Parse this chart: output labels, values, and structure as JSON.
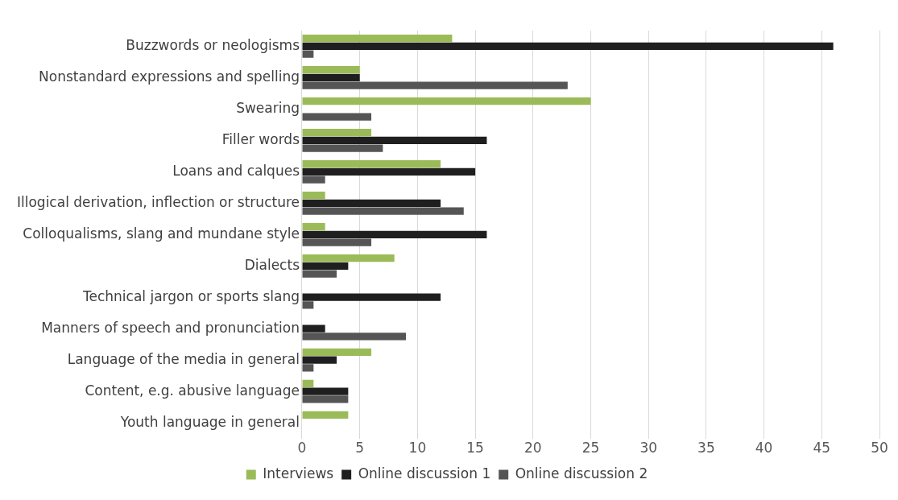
{
  "chart_data": {
    "type": "bar",
    "orientation": "horizontal",
    "categories": [
      "Buzzwords or neologisms",
      "Nonstandard expressions and spelling",
      "Swearing",
      "Filler words",
      "Loans and calques",
      "Illogical derivation, inflection or structure",
      "Colloqualisms, slang and mundane style",
      "Dialects",
      "Technical jargon or sports slang",
      "Manners of speech and pronunciation",
      "Language of the media in general",
      "Content, e.g. abusive language",
      "Youth language in general"
    ],
    "series": [
      {
        "name": "Interviews",
        "color": "#9bbb59",
        "values": [
          13,
          5,
          25,
          6,
          12,
          2,
          2,
          8,
          0,
          0,
          6,
          1,
          4
        ]
      },
      {
        "name": "Online discussion 1",
        "color": "#1f1f1f",
        "values": [
          46,
          5,
          0,
          16,
          15,
          12,
          16,
          4,
          12,
          2,
          3,
          4,
          0
        ]
      },
      {
        "name": "Online discussion 2",
        "color": "#555555",
        "values": [
          1,
          23,
          6,
          7,
          2,
          14,
          6,
          3,
          1,
          9,
          1,
          4,
          0
        ]
      }
    ],
    "xlim": [
      0,
      50
    ],
    "xticks": [
      0,
      5,
      10,
      15,
      20,
      25,
      30,
      35,
      40,
      45,
      50
    ],
    "grid": "x",
    "legend": "bottom"
  }
}
